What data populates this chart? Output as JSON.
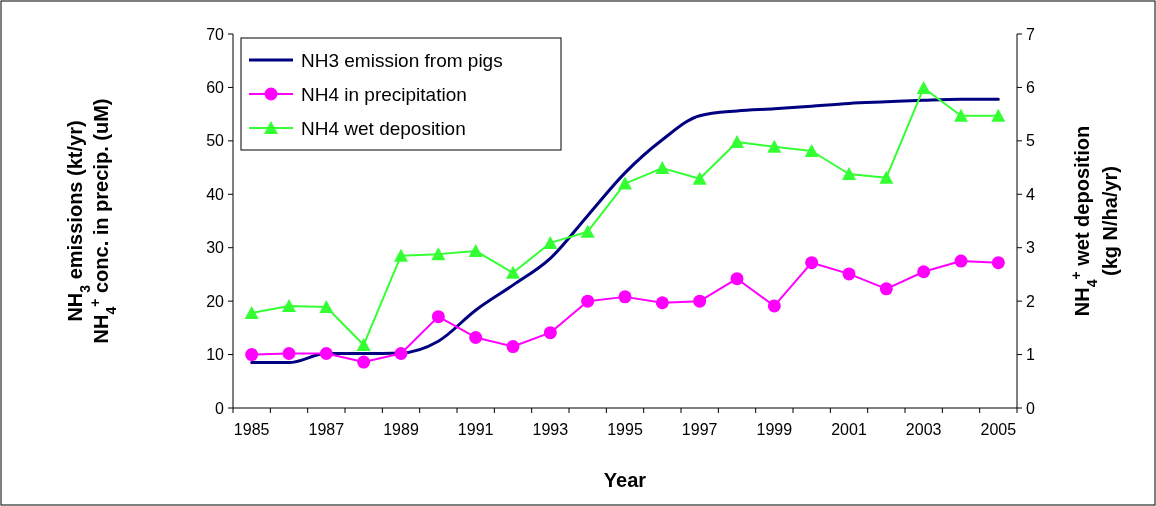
{
  "chart_data": {
    "type": "line",
    "xlabel": "Year",
    "ylabel": "NH$_{3}$ emissions (kt/yr)\nNH$_{4}$$^{+}$ conc. in precip. (uM)",
    "y2label": "NH$_{4}$$^{+}$ wet deposition\n(kg N/ha/yr)",
    "categories": [
      "1985",
      null,
      "1987",
      null,
      "1989",
      null,
      "1991",
      null,
      "1993",
      null,
      "1995",
      null,
      "1997",
      null,
      "1999",
      null,
      "2001",
      null,
      "2003",
      null,
      "2005"
    ],
    "ylim": [
      0,
      70
    ],
    "yticks": [
      0,
      10,
      20,
      30,
      40,
      50,
      60,
      70
    ],
    "y2lim": [
      0,
      7
    ],
    "y2ticks": [
      0,
      1,
      2,
      3,
      4,
      5,
      6,
      7
    ],
    "legend": "top left",
    "grid": false,
    "series": [
      {
        "name": "NH3 emission from pigs",
        "color": "#000080",
        "marker": "none",
        "values": [
          8.5,
          8.5,
          10.2,
          10.2,
          10.3,
          12.5,
          18.3,
          23,
          28,
          36,
          44,
          50.2,
          54.7,
          55.6,
          56,
          56.5,
          57,
          57.3,
          57.6,
          57.8,
          57.8
        ]
      },
      {
        "name": "NH4 in precipitation",
        "color": "#ff00ff",
        "marker": "circle",
        "values": [
          10,
          10.2,
          10.2,
          8.6,
          10.2,
          17.1,
          13.2,
          11.5,
          14.1,
          20,
          20.8,
          19.7,
          20,
          24.2,
          19.1,
          27.2,
          25.1,
          22.3,
          25.5,
          27.5,
          27.2
        ]
      },
      {
        "name": "NH4 wet deposition",
        "color": "#33ff33",
        "marker": "triangle",
        "axis": "y2",
        "values": [
          1.78,
          1.91,
          1.89,
          1.18,
          2.85,
          2.88,
          2.94,
          2.53,
          3.09,
          3.3,
          4.2,
          4.49,
          4.29,
          4.98,
          4.89,
          4.81,
          4.38,
          4.31,
          5.99,
          5.47,
          5.47
        ]
      }
    ]
  }
}
